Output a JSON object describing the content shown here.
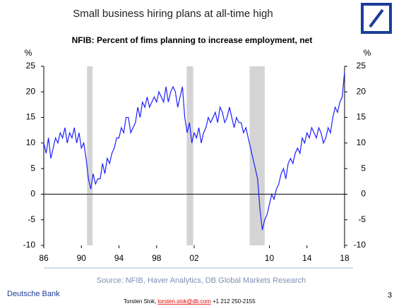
{
  "chart_data": {
    "type": "line",
    "title": "Small business hiring plans at all-time high",
    "subtitle": "NFIB: Percent of fims planning to increase employment, net",
    "y_label": "%",
    "y2_label": "%",
    "source": "Source: NFIB, Haver Analytics,  DB Global Markets Research",
    "x": [
      1986,
      1986.25,
      1986.5,
      1986.75,
      1987,
      1987.25,
      1987.5,
      1987.75,
      1988,
      1988.25,
      1988.5,
      1988.75,
      1989,
      1989.25,
      1989.5,
      1989.75,
      1990,
      1990.25,
      1990.5,
      1990.75,
      1991,
      1991.25,
      1991.5,
      1991.75,
      1992,
      1992.25,
      1992.5,
      1992.75,
      1993,
      1993.25,
      1993.5,
      1993.75,
      1994,
      1994.25,
      1994.5,
      1994.75,
      1995,
      1995.25,
      1995.5,
      1995.75,
      1996,
      1996.25,
      1996.5,
      1996.75,
      1997,
      1997.25,
      1997.5,
      1997.75,
      1998,
      1998.25,
      1998.5,
      1998.75,
      1999,
      1999.25,
      1999.5,
      1999.75,
      2000,
      2000.25,
      2000.5,
      2000.75,
      2001,
      2001.25,
      2001.5,
      2001.75,
      2002,
      2002.25,
      2002.5,
      2002.75,
      2003,
      2003.25,
      2003.5,
      2003.75,
      2004,
      2004.25,
      2004.5,
      2004.75,
      2005,
      2005.25,
      2005.5,
      2005.75,
      2006,
      2006.25,
      2006.5,
      2006.75,
      2007,
      2007.25,
      2007.5,
      2007.75,
      2008,
      2008.25,
      2008.5,
      2008.75,
      2009,
      2009.25,
      2009.5,
      2009.75,
      2010,
      2010.25,
      2010.5,
      2010.75,
      2011,
      2011.25,
      2011.5,
      2011.75,
      2012,
      2012.25,
      2012.5,
      2012.75,
      2013,
      2013.25,
      2013.5,
      2013.75,
      2014,
      2014.25,
      2014.5,
      2014.75,
      2015,
      2015.25,
      2015.5,
      2015.75,
      2016,
      2016.25,
      2016.5,
      2016.75,
      2017,
      2017.25,
      2017.5,
      2017.75,
      2018
    ],
    "series": [
      {
        "color": "#1f1fff",
        "values": [
          10,
          8,
          11,
          7,
          9,
          11,
          10,
          12,
          11,
          13,
          10,
          12,
          11,
          13,
          10,
          12,
          9,
          10,
          7,
          3,
          1,
          4,
          2,
          3,
          3,
          6,
          4,
          7,
          6,
          8,
          9,
          11,
          11,
          13,
          12,
          15,
          15,
          12,
          13,
          14,
          17,
          15,
          18,
          17,
          19,
          17,
          18,
          19,
          18,
          20,
          19,
          18,
          21,
          18,
          20,
          21,
          20,
          17,
          19,
          21,
          15,
          12,
          14,
          10,
          12,
          11,
          13,
          10,
          12,
          13,
          15,
          14,
          15,
          16,
          14,
          17,
          16,
          14,
          15,
          17,
          15,
          13,
          15,
          14,
          14,
          12,
          13,
          11,
          9,
          7,
          5,
          3,
          -3,
          -7,
          -5,
          -4,
          -2,
          0,
          -1,
          1,
          2,
          4,
          5,
          3,
          6,
          7,
          6,
          8,
          9,
          8,
          11,
          10,
          12,
          11,
          13,
          12,
          11,
          13,
          12,
          10,
          11,
          13,
          12,
          15,
          17,
          16,
          18,
          19,
          24
        ]
      }
    ],
    "shaded_ranges": [
      [
        1990.6,
        1991.2
      ],
      [
        2001.2,
        2001.9
      ],
      [
        2007.9,
        2009.5
      ]
    ],
    "shade_color": "#d4d4d4",
    "xlim": [
      1986,
      2018
    ],
    "xticks": [
      {
        "value": 1986,
        "label": "86"
      },
      {
        "value": 1990,
        "label": "90"
      },
      {
        "value": 1994,
        "label": "94"
      },
      {
        "value": 1998,
        "label": "98"
      },
      {
        "value": 2002,
        "label": "02"
      },
      {
        "value": 2010,
        "label": "10"
      },
      {
        "value": 2014,
        "label": "14"
      },
      {
        "value": 2018,
        "label": "18"
      }
    ],
    "ylim": [
      -10,
      25
    ],
    "yticks": [
      -10,
      -5,
      0,
      5,
      10,
      15,
      20,
      25
    ],
    "y2lim": [
      -10,
      25
    ],
    "y2ticks": [
      -10,
      -5,
      0,
      5,
      10,
      15,
      20,
      25
    ]
  },
  "footer": {
    "company": "Deutsche Bank",
    "author": "Torsten Slok,",
    "email": "torsten.slok@db.com",
    "phone": "+1 212 250-2155",
    "page": "3"
  }
}
